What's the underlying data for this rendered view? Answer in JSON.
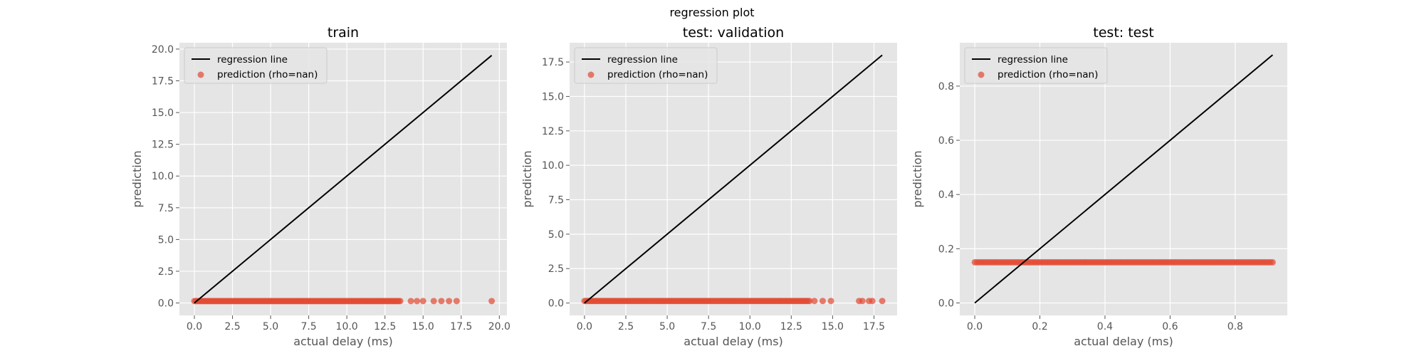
{
  "figure": {
    "title": "regression plot"
  },
  "colors": {
    "background": "#e5e5e5",
    "grid": "#ffffff",
    "line": "#000000",
    "points": "#e24a33",
    "tick_text": "#555555"
  },
  "chart_data": [
    {
      "type": "scatter",
      "title": "train",
      "xlabel": "actual delay (ms)",
      "ylabel": "prediction",
      "xlim": [
        -0.98,
        20.5
      ],
      "ylim": [
        -0.98,
        20.5
      ],
      "xticks": [
        0,
        2.5,
        5,
        7.5,
        10,
        12.5,
        15,
        17.5,
        20
      ],
      "xtick_labels": [
        "0.0",
        "2.5",
        "5.0",
        "7.5",
        "10.0",
        "12.5",
        "15.0",
        "17.5",
        "20.0"
      ],
      "yticks": [
        0,
        2.5,
        5,
        7.5,
        10,
        12.5,
        15,
        17.5,
        20
      ],
      "ytick_labels": [
        "0.0",
        "2.5",
        "5.0",
        "7.5",
        "10.0",
        "12.5",
        "15.0",
        "17.5",
        "20.0"
      ],
      "grid": true,
      "legend_position": "upper-left",
      "legend": [
        "regression line",
        "prediction (rho=nan)"
      ],
      "regression_line": {
        "x": [
          0,
          19.5
        ],
        "y": [
          0,
          19.5
        ]
      },
      "prediction_value": 0.15,
      "dense_x_range": [
        0,
        13.5
      ],
      "outliers_x": [
        14.2,
        14.6,
        15.0,
        15.7,
        16.2,
        16.7,
        17.2,
        19.5
      ]
    },
    {
      "type": "scatter",
      "title": "test: validation",
      "xlabel": "actual delay (ms)",
      "ylabel": "prediction",
      "xlim": [
        -0.9,
        18.9
      ],
      "ylim": [
        -0.9,
        18.9
      ],
      "xticks": [
        0,
        2.5,
        5,
        7.5,
        10,
        12.5,
        15,
        17.5
      ],
      "xtick_labels": [
        "0.0",
        "2.5",
        "5.0",
        "7.5",
        "10.0",
        "12.5",
        "15.0",
        "17.5"
      ],
      "yticks": [
        0,
        2.5,
        5,
        7.5,
        10,
        12.5,
        15,
        17.5
      ],
      "ytick_labels": [
        "0.0",
        "2.5",
        "5.0",
        "7.5",
        "10.0",
        "12.5",
        "15.0",
        "17.5"
      ],
      "grid": true,
      "legend_position": "upper-left",
      "legend": [
        "regression line",
        "prediction (rho=nan)"
      ],
      "regression_line": {
        "x": [
          0,
          18
        ],
        "y": [
          0,
          18
        ]
      },
      "prediction_value": 0.15,
      "dense_x_range": [
        0,
        13.6
      ],
      "outliers_x": [
        13.9,
        14.4,
        14.9,
        16.6,
        16.8,
        17.2,
        17.4,
        18.0
      ]
    },
    {
      "type": "scatter",
      "title": "test: test",
      "xlabel": "actual delay (ms)",
      "ylabel": "prediction",
      "xlim": [
        -0.046,
        0.96
      ],
      "ylim": [
        -0.046,
        0.96
      ],
      "xticks": [
        0,
        0.2,
        0.4,
        0.6,
        0.8
      ],
      "xtick_labels": [
        "0.0",
        "0.2",
        "0.4",
        "0.6",
        "0.8"
      ],
      "yticks": [
        0,
        0.2,
        0.4,
        0.6,
        0.8
      ],
      "ytick_labels": [
        "0.0",
        "0.2",
        "0.4",
        "0.6",
        "0.8"
      ],
      "grid": true,
      "legend_position": "upper-left",
      "legend": [
        "regression line",
        "prediction (rho=nan)"
      ],
      "regression_line": {
        "x": [
          0,
          0.915
        ],
        "y": [
          0,
          0.915
        ]
      },
      "prediction_value": 0.15,
      "dense_x_range": [
        0,
        0.915
      ],
      "outliers_x": []
    }
  ]
}
